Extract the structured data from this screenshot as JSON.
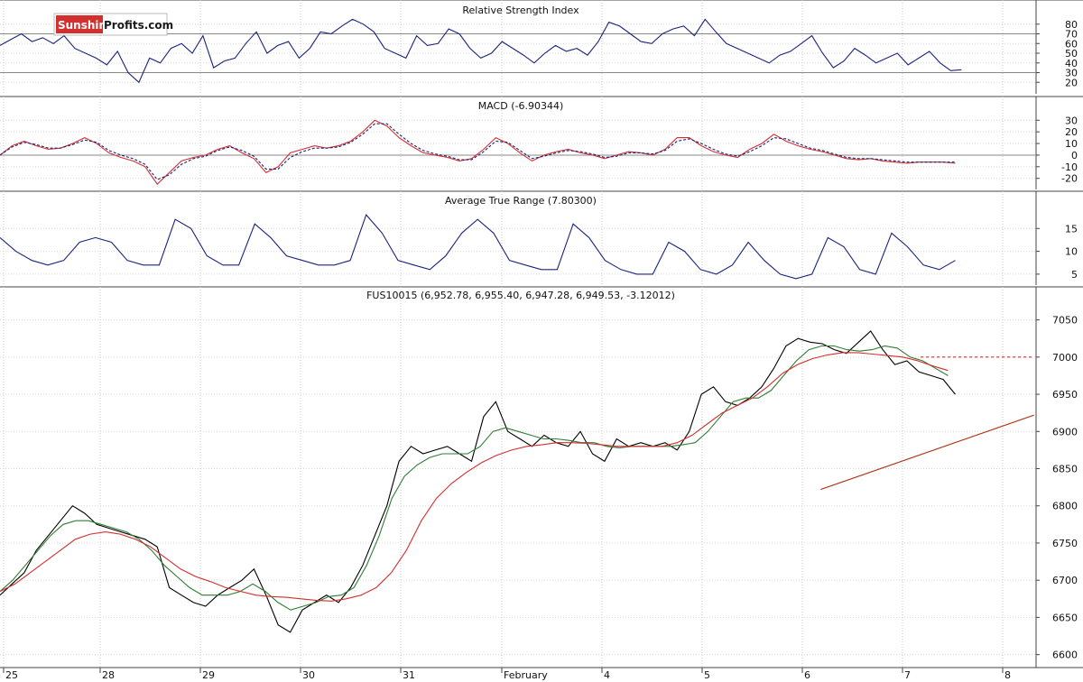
{
  "watermark": {
    "part1": "Sunshine",
    "part2": "Profits.com"
  },
  "x_axis": {
    "labels": [
      "25",
      "28",
      "29",
      "30",
      "31",
      "February",
      "4",
      "5",
      "6",
      "7",
      "8"
    ]
  },
  "chart_data": [
    {
      "type": "line",
      "title": "Relative Strength Index",
      "ylim": [
        10,
        90
      ],
      "ticks": [
        20,
        30,
        40,
        50,
        60,
        70,
        80
      ],
      "reference_lines": [
        30,
        70
      ],
      "series": [
        {
          "color": "#1a237e",
          "values": [
            58,
            64,
            70,
            62,
            66,
            60,
            68,
            55,
            50,
            45,
            38,
            52,
            30,
            20,
            45,
            40,
            55,
            60,
            50,
            68,
            35,
            42,
            45,
            60,
            72,
            50,
            58,
            62,
            45,
            55,
            72,
            70,
            78,
            85,
            80,
            72,
            55,
            50,
            45,
            68,
            58,
            60,
            75,
            70,
            55,
            45,
            50,
            62,
            55,
            48,
            40,
            50,
            58,
            52,
            55,
            48,
            62,
            82,
            78,
            70,
            62,
            60,
            70,
            75,
            78,
            68,
            85,
            72,
            60,
            55,
            50,
            45,
            40,
            48,
            52,
            60,
            68,
            50,
            35,
            42,
            55,
            48,
            40,
            45,
            50,
            38,
            45,
            52,
            40,
            32,
            33
          ]
        }
      ]
    },
    {
      "type": "line",
      "title": "MACD (-6.90344)",
      "ylim": [
        -28,
        38
      ],
      "ticks": [
        -20,
        -10,
        0,
        10,
        20,
        30
      ],
      "reference_lines": [
        0
      ],
      "series": [
        {
          "color": "#d32f2f",
          "values": [
            0,
            8,
            12,
            8,
            5,
            6,
            10,
            15,
            10,
            2,
            -2,
            -5,
            -10,
            -25,
            -15,
            -5,
            -2,
            0,
            5,
            8,
            2,
            -3,
            -15,
            -10,
            2,
            5,
            8,
            6,
            8,
            12,
            20,
            30,
            25,
            15,
            8,
            2,
            0,
            -2,
            -5,
            -3,
            5,
            15,
            10,
            2,
            -5,
            0,
            3,
            5,
            2,
            0,
            -3,
            0,
            3,
            2,
            0,
            5,
            15,
            15,
            8,
            3,
            0,
            -2,
            5,
            10,
            18,
            12,
            8,
            5,
            3,
            0,
            -3,
            -4,
            -3,
            -5,
            -6,
            -7,
            -6,
            -6,
            -6,
            -7
          ]
        },
        {
          "color": "#1a237e",
          "dashed": true,
          "values": [
            0,
            7,
            11,
            9,
            6,
            6,
            9,
            13,
            11,
            4,
            0,
            -3,
            -8,
            -21,
            -17,
            -8,
            -3,
            -1,
            4,
            7,
            4,
            -1,
            -12,
            -12,
            -2,
            3,
            6,
            6,
            7,
            11,
            18,
            27,
            27,
            18,
            10,
            4,
            1,
            -1,
            -4,
            -4,
            3,
            12,
            11,
            4,
            -3,
            -1,
            2,
            4,
            3,
            1,
            -2,
            -1,
            2,
            2,
            1,
            4,
            12,
            14,
            10,
            5,
            1,
            -1,
            3,
            8,
            15,
            14,
            10,
            6,
            4,
            1,
            -2,
            -3,
            -3,
            -4,
            -5,
            -6,
            -6,
            -6,
            -6,
            -6
          ]
        }
      ]
    },
    {
      "type": "line",
      "title": "Average True Range (7.80300)",
      "ylim": [
        3,
        20
      ],
      "ticks": [
        5,
        10,
        15
      ],
      "series": [
        {
          "color": "#1a237e",
          "values": [
            13,
            10,
            8,
            7,
            8,
            12,
            13,
            12,
            8,
            7,
            7,
            17,
            15,
            9,
            7,
            7,
            16,
            13,
            9,
            8,
            7,
            7,
            8,
            18,
            14,
            8,
            7,
            6,
            9,
            14,
            17,
            14,
            8,
            7,
            6,
            6,
            16,
            13,
            8,
            6,
            5,
            5,
            12,
            10,
            6,
            5,
            7,
            12,
            8,
            5,
            4,
            5,
            13,
            11,
            6,
            5,
            14,
            11,
            7,
            6,
            8
          ]
        }
      ]
    },
    {
      "type": "line",
      "title": "FUS10015 (6,952.78, 6,955.40, 6,947.28, 6,949.53, -3.12012)",
      "ylim": [
        6585,
        7075
      ],
      "ticks": [
        6600,
        6650,
        6700,
        6750,
        6800,
        6850,
        6900,
        6950,
        7000,
        7050
      ],
      "series": [
        {
          "color": "#000000",
          "values": [
            6680,
            6695,
            6710,
            6740,
            6760,
            6780,
            6800,
            6790,
            6775,
            6770,
            6765,
            6760,
            6755,
            6745,
            6690,
            6680,
            6670,
            6665,
            6680,
            6690,
            6700,
            6715,
            6680,
            6640,
            6630,
            6660,
            6670,
            6680,
            6670,
            6690,
            6720,
            6760,
            6800,
            6860,
            6880,
            6870,
            6875,
            6880,
            6870,
            6860,
            6920,
            6940,
            6900,
            6890,
            6880,
            6895,
            6885,
            6880,
            6900,
            6870,
            6860,
            6890,
            6880,
            6885,
            6880,
            6885,
            6875,
            6900,
            6950,
            6960,
            6940,
            6935,
            6945,
            6960,
            6985,
            7015,
            7025,
            7020,
            7018,
            7010,
            7005,
            7020,
            7035,
            7010,
            6990,
            6995,
            6980,
            6975,
            6970,
            6950
          ]
        },
        {
          "color": "#2e7d32",
          "values": [
            6685,
            6700,
            6720,
            6740,
            6760,
            6775,
            6780,
            6780,
            6775,
            6770,
            6765,
            6755,
            6740,
            6720,
            6705,
            6690,
            6680,
            6680,
            6680,
            6685,
            6695,
            6685,
            6670,
            6660,
            6665,
            6670,
            6678,
            6680,
            6690,
            6720,
            6760,
            6810,
            6840,
            6855,
            6865,
            6870,
            6870,
            6870,
            6880,
            6900,
            6905,
            6900,
            6895,
            6890,
            6890,
            6888,
            6885,
            6885,
            6880,
            6878,
            6880,
            6880,
            6880,
            6880,
            6882,
            6885,
            6900,
            6920,
            6940,
            6945,
            6945,
            6955,
            6975,
            6995,
            7010,
            7015,
            7015,
            7010,
            7008,
            7010,
            7015,
            7012,
            7000,
            6995,
            6985,
            6975
          ]
        },
        {
          "color": "#d32f2f",
          "values": [
            6685,
            6695,
            6710,
            6725,
            6740,
            6755,
            6762,
            6765,
            6762,
            6755,
            6745,
            6730,
            6715,
            6705,
            6698,
            6690,
            6685,
            6680,
            6678,
            6677,
            6675,
            6673,
            6672,
            6675,
            6680,
            6690,
            6710,
            6740,
            6780,
            6810,
            6830,
            6845,
            6858,
            6868,
            6875,
            6880,
            6882,
            6885,
            6885,
            6884,
            6882,
            6880,
            6880,
            6880,
            6880,
            6885,
            6895,
            6910,
            6925,
            6935,
            6945,
            6960,
            6978,
            6990,
            6998,
            7003,
            7006,
            7006,
            7004,
            7002,
            7000,
            6995,
            6988,
            6982
          ]
        }
      ],
      "trend_lines": [
        {
          "color": "#b03a1e",
          "from": [
            30.4,
            6822
          ],
          "to": [
            38.3,
            6922
          ]
        },
        {
          "color": "#d32f2f",
          "dashed": true,
          "value": 7000,
          "from_x": 34.1,
          "to_x": 38.3
        }
      ]
    }
  ]
}
